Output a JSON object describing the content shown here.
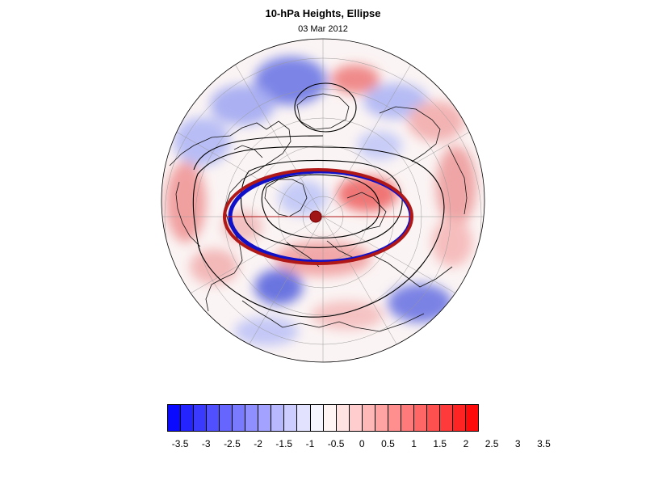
{
  "title": "10-hPa Heights, Ellipse",
  "subtitle": "03 Mar 2012",
  "colorbar": {
    "colors": [
      "#0a0aff",
      "#2424ff",
      "#3a3aff",
      "#5050ff",
      "#6666ff",
      "#7a7aff",
      "#8f8fff",
      "#a3a3ff",
      "#b8b8ff",
      "#cdcdff",
      "#e2e2ff",
      "#f5f5ff",
      "#fff5f5",
      "#ffe2e2",
      "#ffcdcd",
      "#ffb8b8",
      "#ffa3a3",
      "#ff8f8f",
      "#ff7a7a",
      "#ff6666",
      "#ff5050",
      "#ff3a3a",
      "#ff2424",
      "#ff0a0a"
    ],
    "labels": [
      "-3.5",
      "-3",
      "-2.5",
      "-2",
      "-1.5",
      "-1",
      "-0.5",
      "0",
      "0.5",
      "1",
      "1.5",
      "2",
      "2.5",
      "3",
      "3.5"
    ]
  },
  "map": {
    "projection": "polar stereographic (north)",
    "field": "10-hPa height anomaly",
    "blue_color": "#1010c8",
    "red_color": "#b01818"
  }
}
